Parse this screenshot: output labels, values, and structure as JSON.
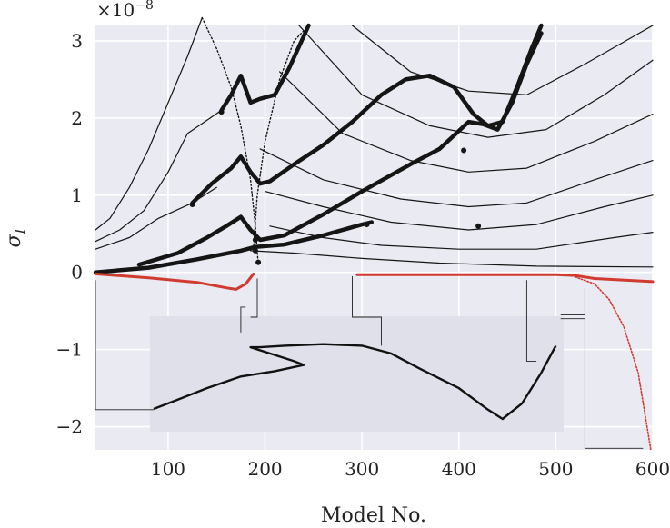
{
  "chart_data": {
    "type": "line",
    "xlabel": "Model No.",
    "ylabel": "σ_I",
    "y_multiplier": "×10^−8",
    "xlim": [
      25,
      600
    ],
    "ylim": [
      -2.3,
      3.2
    ],
    "x_ticks": [
      100,
      200,
      300,
      400,
      500,
      600
    ],
    "y_ticks": [
      -2,
      -1,
      0,
      1,
      2,
      3
    ],
    "grid": true,
    "background": "#eaeaf2",
    "colors": {
      "branch": "#151515",
      "unstable": "#d13a2f"
    },
    "series": [
      {
        "style": "thin",
        "color": "#151515",
        "points": [
          [
            25,
            0.55
          ],
          [
            40,
            0.7
          ],
          [
            60,
            1.1
          ],
          [
            80,
            1.6
          ],
          [
            100,
            2.2
          ],
          [
            120,
            2.8
          ],
          [
            135,
            3.3
          ]
        ]
      },
      {
        "style": "thin",
        "color": "#151515",
        "points": [
          [
            25,
            0.4
          ],
          [
            50,
            0.55
          ],
          [
            75,
            0.8
          ],
          [
            100,
            1.3
          ],
          [
            120,
            1.8
          ],
          [
            155,
            2.1
          ]
        ]
      },
      {
        "style": "thin",
        "color": "#151515",
        "points": [
          [
            25,
            0.3
          ],
          [
            60,
            0.45
          ],
          [
            90,
            0.7
          ],
          [
            125,
            0.9
          ],
          [
            150,
            1.1
          ]
        ]
      },
      {
        "style": "thick",
        "color": "#151515",
        "points": [
          [
            25,
            0.0
          ],
          [
            80,
            0.06
          ],
          [
            130,
            0.17
          ],
          [
            175,
            0.28
          ],
          [
            190,
            0.33
          ],
          [
            220,
            0.36
          ],
          [
            260,
            0.48
          ],
          [
            300,
            0.62
          ],
          [
            310,
            0.65
          ]
        ]
      },
      {
        "style": "thick",
        "color": "#151515",
        "points": [
          [
            70,
            0.1
          ],
          [
            110,
            0.25
          ],
          [
            140,
            0.45
          ],
          [
            160,
            0.6
          ],
          [
            175,
            0.72
          ],
          [
            185,
            0.55
          ],
          [
            195,
            0.42
          ],
          [
            220,
            0.48
          ],
          [
            260,
            0.75
          ],
          [
            300,
            1.05
          ],
          [
            350,
            1.4
          ],
          [
            380,
            1.6
          ],
          [
            410,
            1.95
          ],
          [
            425,
            1.92
          ],
          [
            440,
            1.85
          ],
          [
            455,
            2.2
          ],
          [
            470,
            2.7
          ],
          [
            485,
            3.1
          ]
        ]
      },
      {
        "style": "thick",
        "color": "#151515",
        "points": [
          [
            125,
            0.9
          ],
          [
            145,
            1.15
          ],
          [
            165,
            1.35
          ],
          [
            175,
            1.5
          ],
          [
            185,
            1.3
          ],
          [
            195,
            1.15
          ],
          [
            205,
            1.18
          ],
          [
            230,
            1.4
          ],
          [
            260,
            1.65
          ],
          [
            290,
            1.95
          ],
          [
            320,
            2.3
          ],
          [
            345,
            2.5
          ],
          [
            370,
            2.55
          ],
          [
            395,
            2.4
          ],
          [
            415,
            2.05
          ],
          [
            430,
            1.9
          ],
          [
            445,
            1.95
          ],
          [
            460,
            2.4
          ],
          [
            475,
            2.9
          ],
          [
            485,
            3.2
          ]
        ]
      },
      {
        "style": "thick",
        "color": "#151515",
        "points": [
          [
            155,
            2.1
          ],
          [
            165,
            2.3
          ],
          [
            175,
            2.55
          ],
          [
            185,
            2.2
          ],
          [
            195,
            2.25
          ],
          [
            210,
            2.3
          ],
          [
            225,
            2.65
          ],
          [
            245,
            3.2
          ]
        ]
      },
      {
        "style": "dotted",
        "color": "#151515",
        "points": [
          [
            135,
            3.3
          ],
          [
            150,
            2.9
          ],
          [
            165,
            2.4
          ],
          [
            175,
            1.9
          ],
          [
            185,
            1.2
          ],
          [
            190,
            0.6
          ],
          [
            193,
            0.1
          ]
        ]
      },
      {
        "style": "dotted",
        "color": "#151515",
        "points": [
          [
            245,
            3.2
          ],
          [
            230,
            3.0
          ],
          [
            215,
            2.5
          ],
          [
            200,
            1.7
          ],
          [
            192,
            1.0
          ],
          [
            188,
            0.3
          ]
        ]
      },
      {
        "style": "thin",
        "color": "#151515",
        "points": [
          [
            185,
            0.28
          ],
          [
            230,
            0.25
          ],
          [
            300,
            0.18
          ],
          [
            380,
            0.12
          ],
          [
            480,
            0.08
          ],
          [
            600,
            0.07
          ]
        ]
      },
      {
        "style": "thin",
        "color": "#151515",
        "points": [
          [
            205,
            0.6
          ],
          [
            260,
            0.45
          ],
          [
            320,
            0.35
          ],
          [
            400,
            0.3
          ],
          [
            480,
            0.3
          ],
          [
            560,
            0.45
          ],
          [
            600,
            0.52
          ]
        ]
      },
      {
        "style": "thin",
        "color": "#151515",
        "points": [
          [
            200,
            1.05
          ],
          [
            260,
            0.85
          ],
          [
            330,
            0.65
          ],
          [
            410,
            0.55
          ],
          [
            480,
            0.62
          ],
          [
            550,
            0.85
          ],
          [
            600,
            1.0
          ]
        ]
      },
      {
        "style": "thin",
        "color": "#151515",
        "points": [
          [
            195,
            1.6
          ],
          [
            260,
            1.2
          ],
          [
            340,
            0.95
          ],
          [
            410,
            0.85
          ],
          [
            470,
            0.9
          ],
          [
            540,
            1.2
          ],
          [
            600,
            1.45
          ]
        ]
      },
      {
        "style": "thin",
        "color": "#151515",
        "points": [
          [
            215,
            2.6
          ],
          [
            280,
            1.8
          ],
          [
            350,
            1.45
          ],
          [
            410,
            1.3
          ],
          [
            470,
            1.35
          ],
          [
            540,
            1.7
          ],
          [
            600,
            2.05
          ]
        ]
      },
      {
        "style": "thin",
        "color": "#151515",
        "points": [
          [
            235,
            3.2
          ],
          [
            300,
            2.3
          ],
          [
            370,
            1.9
          ],
          [
            430,
            1.75
          ],
          [
            490,
            1.85
          ],
          [
            550,
            2.3
          ],
          [
            600,
            2.75
          ]
        ]
      },
      {
        "style": "thin",
        "color": "#151515",
        "points": [
          [
            290,
            3.2
          ],
          [
            350,
            2.6
          ],
          [
            410,
            2.35
          ],
          [
            470,
            2.3
          ],
          [
            530,
            2.7
          ],
          [
            600,
            3.2
          ]
        ]
      },
      {
        "style": "red",
        "color": "#d13a2f",
        "points": [
          [
            25,
            -0.02
          ],
          [
            80,
            -0.07
          ],
          [
            130,
            -0.13
          ],
          [
            160,
            -0.2
          ],
          [
            170,
            -0.22
          ],
          [
            180,
            -0.15
          ],
          [
            188,
            -0.02
          ]
        ]
      },
      {
        "style": "red",
        "color": "#d13a2f",
        "points": [
          [
            295,
            -0.03
          ],
          [
            400,
            -0.03
          ],
          [
            500,
            -0.03
          ],
          [
            520,
            -0.04
          ],
          [
            540,
            -0.08
          ],
          [
            600,
            -0.12
          ]
        ]
      },
      {
        "style": "red-dotted",
        "color": "#d13a2f",
        "points": [
          [
            520,
            -0.06
          ],
          [
            540,
            -0.15
          ],
          [
            555,
            -0.35
          ],
          [
            570,
            -0.7
          ],
          [
            585,
            -1.3
          ],
          [
            598,
            -2.3
          ]
        ]
      }
    ],
    "markers": [
      [
        190,
        0.28
      ],
      [
        193,
        0.13
      ],
      [
        190,
        0.42
      ],
      [
        305,
        0.62
      ],
      [
        405,
        1.58
      ],
      [
        420,
        0.6
      ],
      [
        125,
        0.88
      ],
      [
        155,
        2.08
      ]
    ]
  },
  "inset": {
    "points": [
      [
        85,
        -1.77
      ],
      [
        110,
        -1.65
      ],
      [
        140,
        -1.5
      ],
      [
        175,
        -1.35
      ],
      [
        210,
        -1.28
      ],
      [
        240,
        -1.2
      ],
      [
        230,
        -1.15
      ],
      [
        205,
        -1.05
      ],
      [
        185,
        -0.97
      ],
      [
        195,
        -0.97
      ],
      [
        220,
        -0.95
      ],
      [
        260,
        -0.93
      ],
      [
        300,
        -0.95
      ],
      [
        330,
        -1.05
      ],
      [
        360,
        -1.25
      ],
      [
        400,
        -1.5
      ],
      [
        430,
        -1.78
      ],
      [
        445,
        -1.9
      ],
      [
        465,
        -1.7
      ],
      [
        485,
        -1.3
      ],
      [
        500,
        -0.95
      ]
    ],
    "leaders": [
      [
        [
          25,
          -0.1
        ],
        [
          25,
          -1.78
        ],
        [
          85,
          -1.78
        ]
      ],
      [
        [
          180,
          -0.45
        ],
        [
          175,
          -0.45
        ],
        [
          175,
          -0.78
        ]
      ],
      [
        [
          185,
          -0.58
        ],
        [
          192,
          -0.58
        ],
        [
          192,
          -0.08
        ]
      ],
      [
        [
          290,
          -0.05
        ],
        [
          290,
          -0.58
        ],
        [
          320,
          -0.58
        ],
        [
          320,
          -0.95
        ]
      ],
      [
        [
          470,
          -0.1
        ],
        [
          470,
          -1.15
        ],
        [
          480,
          -1.15
        ]
      ],
      [
        [
          505,
          -0.55
        ],
        [
          530,
          -0.55
        ],
        [
          530,
          -0.2
        ]
      ],
      [
        [
          505,
          -0.6
        ],
        [
          530,
          -0.6
        ],
        [
          530,
          -2.28
        ],
        [
          590,
          -2.28
        ]
      ]
    ]
  }
}
